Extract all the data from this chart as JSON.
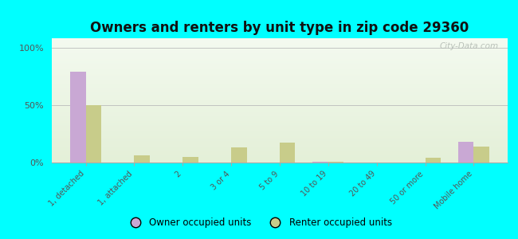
{
  "title": "Owners and renters by unit type in zip code 29360",
  "categories": [
    "1, detached",
    "1, attached",
    "2",
    "3 or 4",
    "5 to 9",
    "10 to 19",
    "20 to 49",
    "50 or more",
    "Mobile home"
  ],
  "owner_values": [
    79,
    0,
    0,
    0,
    0,
    1,
    0,
    0,
    18
  ],
  "renter_values": [
    50,
    6,
    5,
    13,
    17,
    1,
    0,
    4,
    14
  ],
  "owner_color": "#c9a8d4",
  "renter_color": "#c8cc8a",
  "background_color": "#00ffff",
  "plot_bg_top": "#f4faf0",
  "plot_bg_bottom": "#e4f0d8",
  "ylabel_ticks": [
    "0%",
    "50%",
    "100%"
  ],
  "ytick_vals": [
    0,
    50,
    100
  ],
  "ylim": [
    0,
    108
  ],
  "watermark": "City-Data.com",
  "legend_owner": "Owner occupied units",
  "legend_renter": "Renter occupied units",
  "title_fontsize": 12,
  "tick_fontsize": 7,
  "legend_fontsize": 8.5
}
